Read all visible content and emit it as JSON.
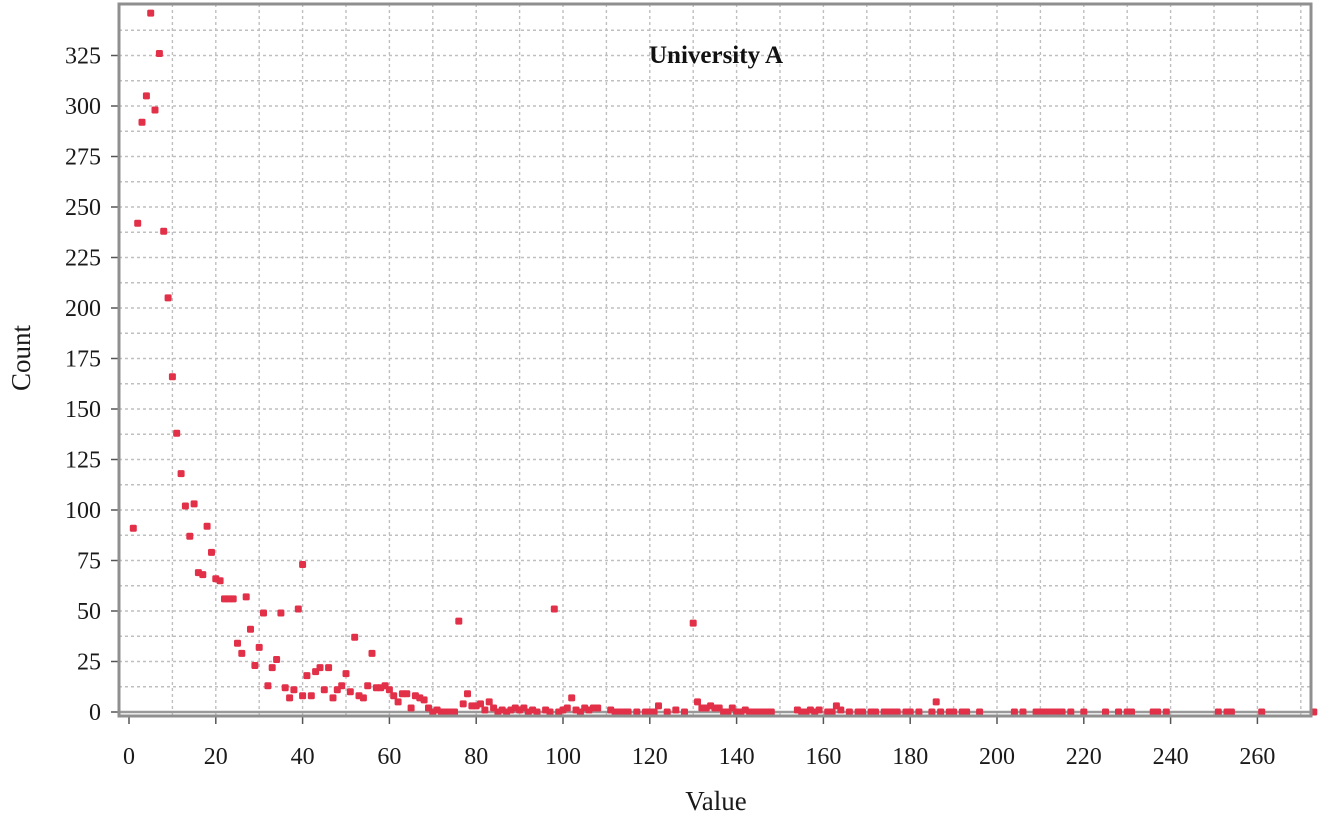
{
  "chart_data": {
    "type": "scatter",
    "title": "University A",
    "xlabel": "Value",
    "ylabel": "Count",
    "xlim": [
      0,
      273
    ],
    "ylim": [
      -4,
      347
    ],
    "xticks": [
      0,
      20,
      40,
      60,
      80,
      100,
      120,
      140,
      160,
      180,
      200,
      220,
      240,
      260
    ],
    "yticks": [
      0,
      25,
      50,
      75,
      100,
      125,
      150,
      175,
      200,
      225,
      250,
      275,
      300,
      325
    ],
    "grid": true,
    "legend": "none",
    "point_color": "#e23048",
    "x": [
      1,
      2,
      3,
      4,
      5,
      6,
      7,
      8,
      9,
      10,
      11,
      12,
      13,
      14,
      15,
      16,
      17,
      18,
      19,
      20,
      21,
      22,
      23,
      24,
      25,
      26,
      27,
      28,
      29,
      30,
      31,
      32,
      33,
      34,
      35,
      36,
      37,
      38,
      39,
      40,
      40,
      41,
      42,
      43,
      44,
      45,
      46,
      47,
      48,
      49,
      50,
      51,
      52,
      53,
      54,
      55,
      56,
      57,
      58,
      59,
      60,
      61,
      62,
      63,
      64,
      65,
      66,
      67,
      68,
      69,
      70,
      71,
      72,
      73,
      74,
      75,
      76,
      77,
      78,
      79,
      80,
      81,
      82,
      83,
      84,
      85,
      86,
      87,
      88,
      89,
      90,
      91,
      92,
      93,
      94,
      96,
      97,
      98,
      99,
      100,
      101,
      102,
      103,
      104,
      105,
      106,
      107,
      108,
      111,
      112,
      113,
      114,
      115,
      117,
      119,
      120,
      121,
      122,
      124,
      126,
      128,
      130,
      131,
      132,
      133,
      134,
      135,
      136,
      137,
      138,
      139,
      140,
      141,
      142,
      143,
      144,
      145,
      146,
      147,
      148,
      154,
      155,
      156,
      157,
      158,
      159,
      161,
      162,
      163,
      164,
      166,
      168,
      169,
      171,
      172,
      174,
      175,
      176,
      177,
      179,
      180,
      182,
      185,
      186,
      187,
      189,
      190,
      192,
      193,
      196,
      204,
      206,
      209,
      210,
      211,
      212,
      213,
      214,
      215,
      217,
      220,
      225,
      228,
      230,
      231,
      236,
      237,
      239,
      251,
      253,
      254,
      261,
      273
    ],
    "y": [
      91,
      242,
      292,
      305,
      346,
      298,
      326,
      238,
      205,
      166,
      138,
      118,
      102,
      87,
      103,
      69,
      68,
      92,
      79,
      66,
      65,
      56,
      56,
      56,
      34,
      29,
      57,
      41,
      23,
      32,
      49,
      13,
      22,
      26,
      49,
      12,
      7,
      11,
      51,
      73,
      8,
      18,
      8,
      20,
      22,
      11,
      22,
      7,
      11,
      13,
      19,
      10,
      37,
      8,
      7,
      13,
      29,
      12,
      12,
      13,
      11,
      8,
      5,
      9,
      9,
      2,
      8,
      7,
      6,
      2,
      0,
      1,
      0,
      0,
      0,
      0,
      45,
      4,
      9,
      3,
      3,
      4,
      1,
      5,
      2,
      0,
      1,
      0,
      1,
      2,
      1,
      2,
      0,
      1,
      0,
      1,
      0,
      51,
      0,
      1,
      2,
      7,
      1,
      0,
      2,
      1,
      2,
      2,
      1,
      0,
      0,
      0,
      0,
      0,
      0,
      0,
      0,
      3,
      0,
      1,
      0,
      44,
      5,
      2,
      2,
      3,
      2,
      2,
      0,
      0,
      2,
      0,
      0,
      1,
      0,
      0,
      0,
      0,
      0,
      0,
      1,
      0,
      0,
      1,
      0,
      1,
      0,
      0,
      3,
      1,
      0,
      0,
      0,
      0,
      0,
      0,
      0,
      0,
      0,
      0,
      0,
      0,
      0,
      5,
      0,
      0,
      0,
      0,
      0,
      0,
      0,
      0,
      0,
      0,
      0,
      0,
      0,
      0,
      0,
      0,
      0,
      0,
      0,
      0,
      0,
      0,
      0,
      0,
      0,
      0,
      0,
      0,
      0
    ]
  }
}
